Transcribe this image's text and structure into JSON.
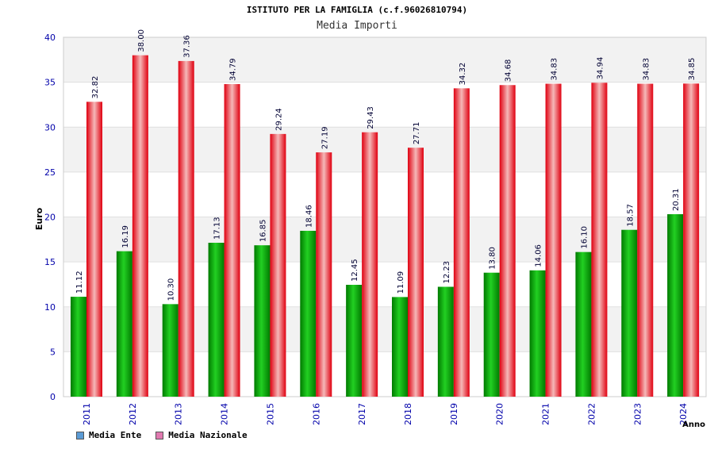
{
  "header": {
    "title": "ISTITUTO PER LA FAMIGLIA (c.f.96026810794)",
    "subtitle": "Media Importi"
  },
  "legend": {
    "items": [
      {
        "label": "Media Ente",
        "swatch_color": "#5b9bd5"
      },
      {
        "label": "Media Nazionale",
        "swatch_color": "#e07ab0"
      }
    ]
  },
  "colors": {
    "ente_bar": "#10b010",
    "nazionale_bar": "#e01020",
    "band_a": "#f2f2f2",
    "band_b": "#ffffff",
    "tick_label": "#0000aa"
  },
  "chart_data": {
    "type": "bar",
    "title": "ISTITUTO PER LA FAMIGLIA (c.f.96026810794)",
    "subtitle": "Media Importi",
    "xlabel": "Anno",
    "ylabel": "Euro",
    "ylim": [
      0,
      40
    ],
    "yticks": [
      0,
      5,
      10,
      15,
      20,
      25,
      30,
      35,
      40
    ],
    "categories": [
      "2011",
      "2012",
      "2013",
      "2014",
      "2015",
      "2016",
      "2017",
      "2018",
      "2019",
      "2020",
      "2021",
      "2022",
      "2023",
      "2024"
    ],
    "series": [
      {
        "name": "Media Ente",
        "values": [
          11.12,
          16.19,
          10.3,
          17.13,
          16.85,
          18.46,
          12.45,
          11.09,
          12.23,
          13.8,
          14.06,
          16.1,
          18.57,
          20.31
        ]
      },
      {
        "name": "Media Nazionale",
        "values": [
          32.82,
          38.0,
          37.36,
          34.79,
          29.24,
          27.19,
          29.43,
          27.71,
          34.32,
          34.68,
          34.83,
          34.94,
          34.83,
          34.85
        ]
      }
    ],
    "data_labels": [
      [
        "11.12",
        "16.19",
        "10.30",
        "17.13",
        "16.85",
        "18.46",
        "12.45",
        "11.09",
        "12.23",
        "13.80",
        "14.06",
        "16.10",
        "18.57",
        "20.31"
      ],
      [
        "32.82",
        "38.00",
        "37.36",
        "34.79",
        "29.24",
        "27.19",
        "29.43",
        "27.71",
        "34.32",
        "34.68",
        "34.83",
        "34.94",
        "34.83",
        "34.85"
      ]
    ],
    "grid": true,
    "legend_position": "bottom-left"
  }
}
